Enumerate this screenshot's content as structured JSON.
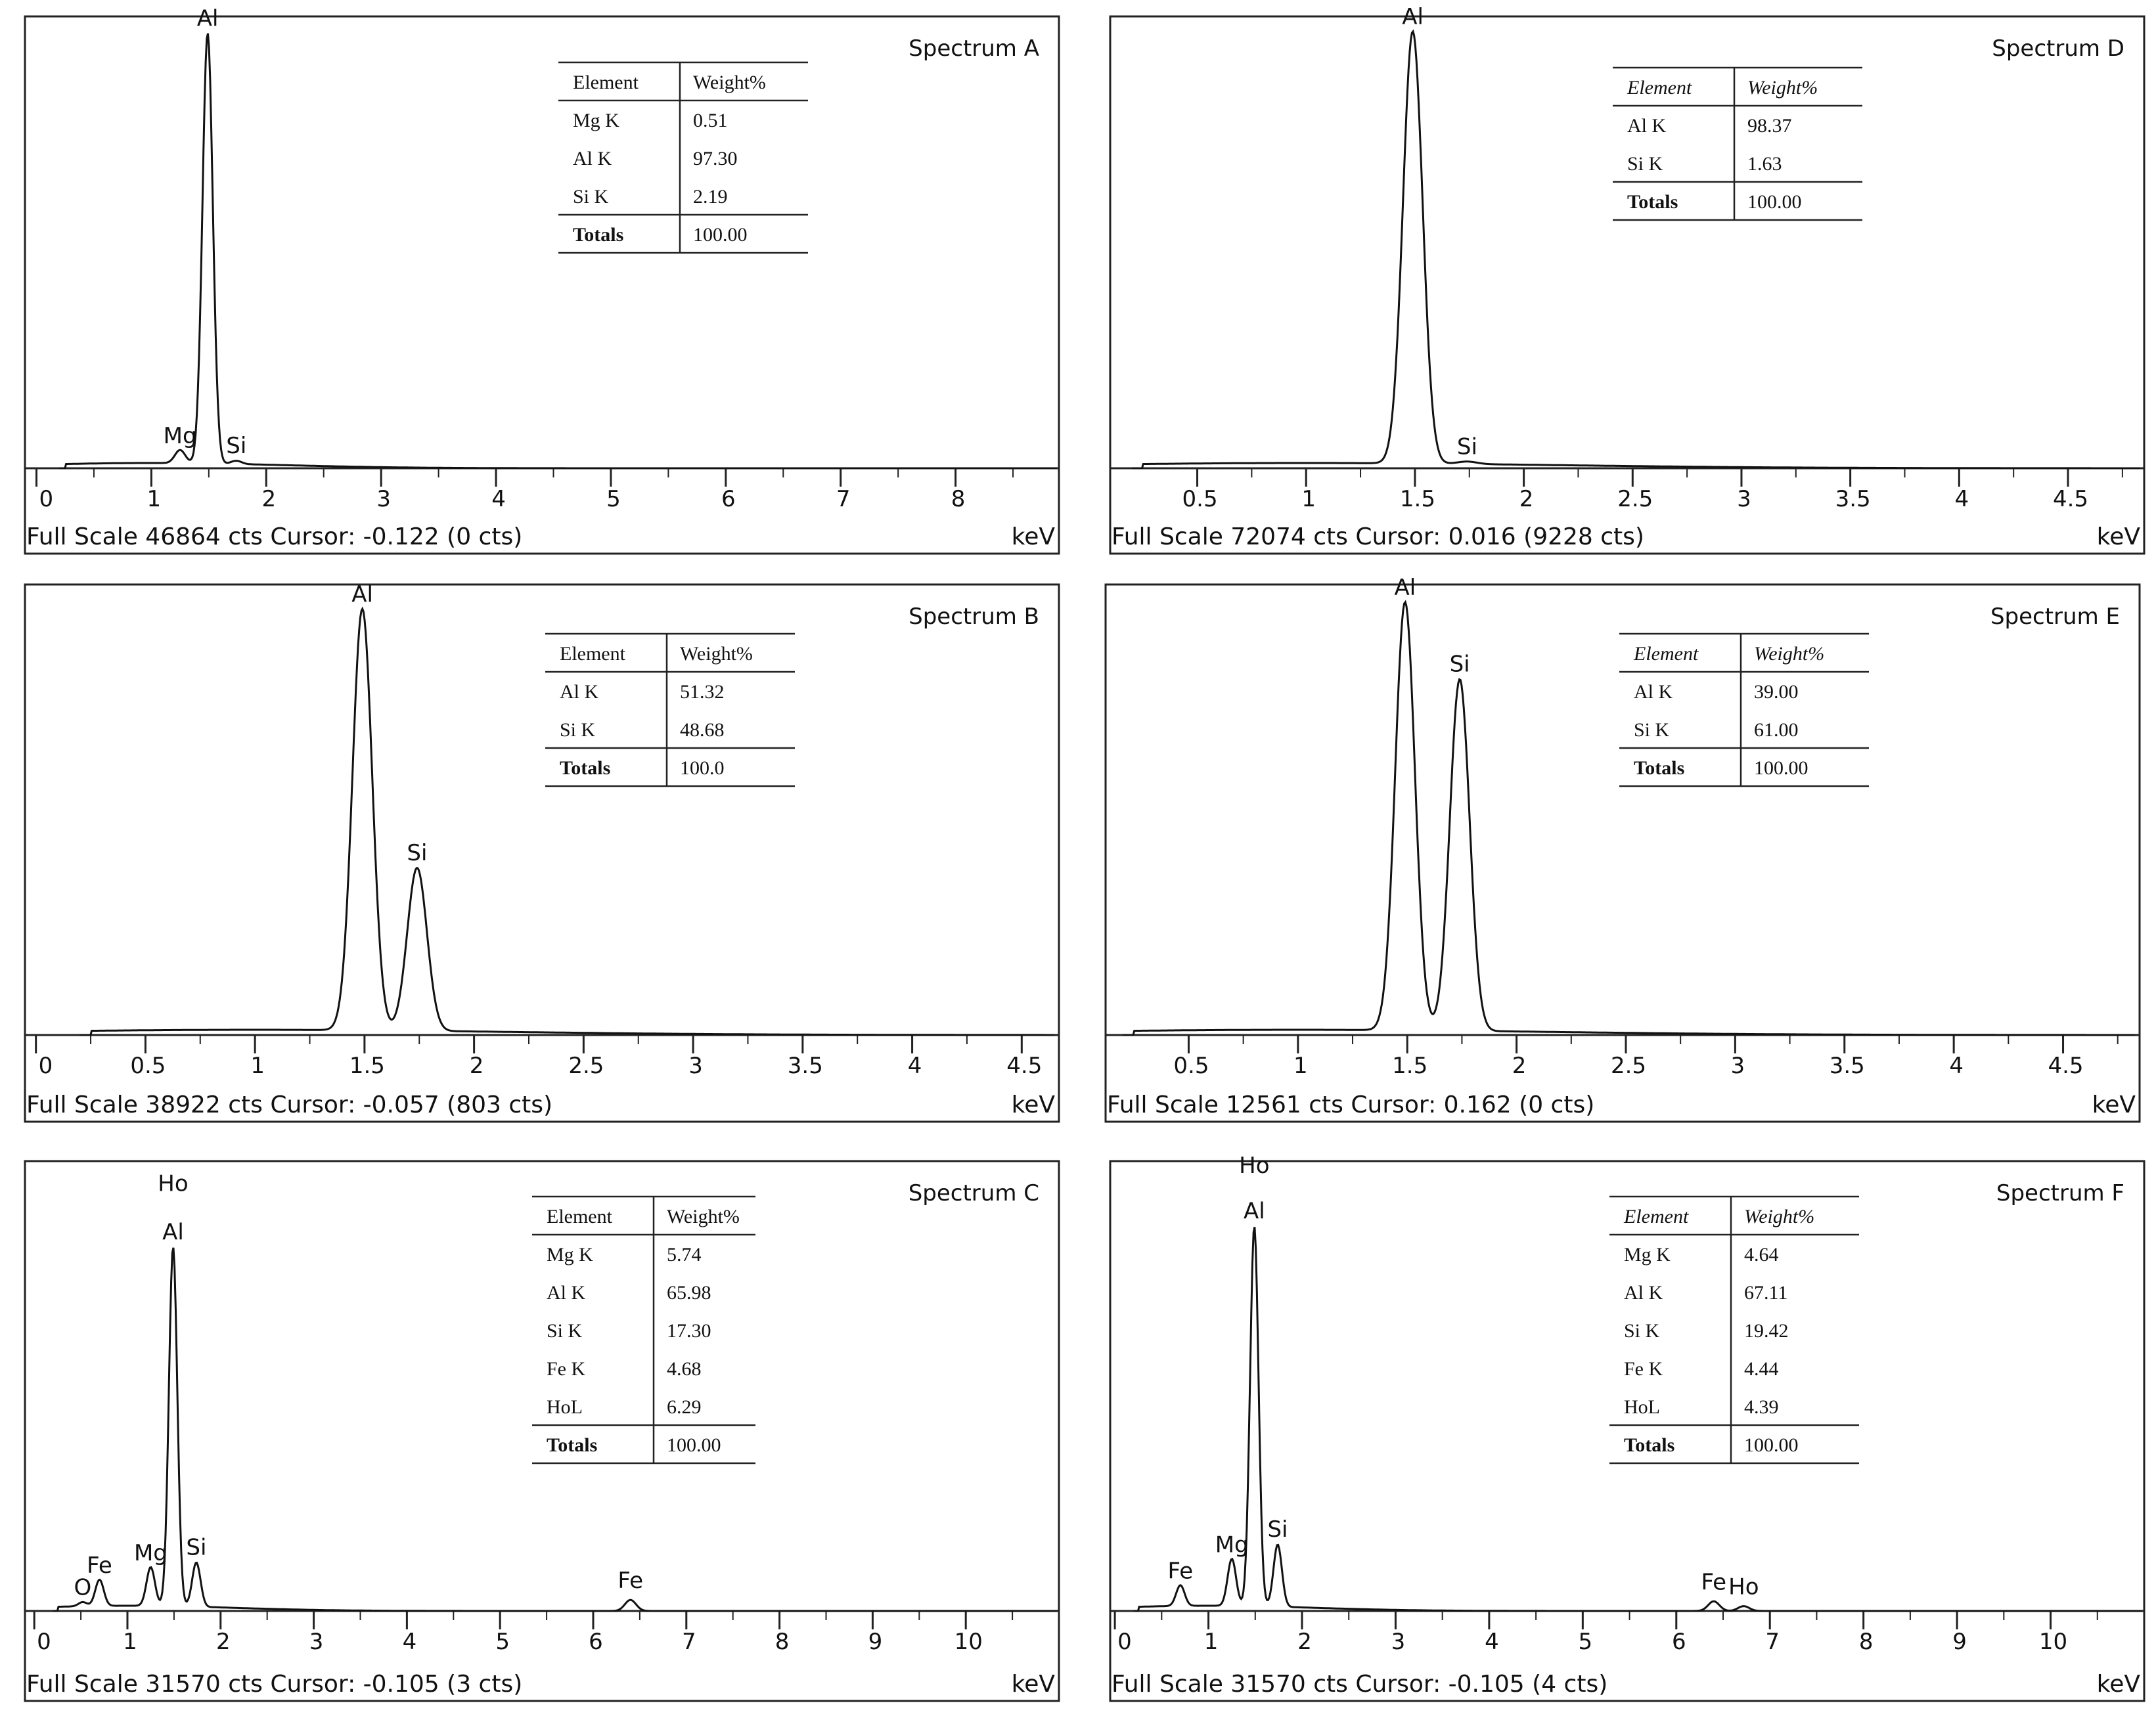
{
  "chart_data": [
    {
      "type": "line",
      "title": "Spectrum A",
      "xlabel": "keV",
      "xlim": [
        -0.1,
        8.9
      ],
      "ylim": [
        0,
        46864
      ],
      "x_ticks": [
        0,
        1,
        2,
        3,
        4,
        5,
        6,
        7,
        8
      ],
      "footer": "Full Scale 46864 cts Cursor: -0.122  (0 cts)",
      "peaks": [
        {
          "label": "Al",
          "x": 1.49,
          "y": 46000
        },
        {
          "label": "Mg",
          "x": 1.25,
          "y": 1400
        },
        {
          "label": "Si",
          "x": 1.74,
          "y": 350
        }
      ],
      "table": {
        "headers": [
          "Element",
          "Weight%"
        ],
        "header_italic": false,
        "rows": [
          [
            "Mg K",
            "0.51"
          ],
          [
            "Al K",
            "97.30"
          ],
          [
            "Si K",
            "2.19"
          ]
        ],
        "total": [
          "Totals",
          "100.00"
        ]
      }
    },
    {
      "type": "line",
      "title": "Spectrum D",
      "xlabel": "keV",
      "xlim": [
        0.1,
        4.85
      ],
      "ylim": [
        0,
        72074
      ],
      "x_ticks": [
        0.5,
        1,
        1.5,
        2,
        2.5,
        3,
        3.5,
        4,
        4.5
      ],
      "footer": "Full Scale 72074 cts Cursor: 0.016  (9228 cts)",
      "peaks": [
        {
          "label": "Al",
          "x": 1.49,
          "y": 71000
        },
        {
          "label": "Si",
          "x": 1.74,
          "y": 400
        }
      ],
      "table": {
        "headers": [
          "Element",
          "Weight%"
        ],
        "header_italic": true,
        "rows": [
          [
            "Al K",
            "98.37"
          ],
          [
            "Si K",
            "1.63"
          ]
        ],
        "total": [
          "Totals",
          "100.00"
        ]
      }
    },
    {
      "type": "line",
      "title": "Spectrum B",
      "xlabel": "keV",
      "xlim": [
        -0.05,
        4.67
      ],
      "ylim": [
        0,
        38922
      ],
      "x_ticks": [
        0,
        0.5,
        1,
        1.5,
        2,
        2.5,
        3,
        3.5,
        4,
        4.5
      ],
      "footer": "Full Scale 38922 cts Cursor: -0.057  (803 cts)",
      "peaks": [
        {
          "label": "Al",
          "x": 1.49,
          "y": 37500
        },
        {
          "label": "Si",
          "x": 1.74,
          "y": 14500
        }
      ],
      "table": {
        "headers": [
          "Element",
          "Weight%"
        ],
        "header_italic": false,
        "rows": [
          [
            "Al K",
            "51.32"
          ],
          [
            "Si K",
            "48.68"
          ]
        ],
        "total": [
          "Totals",
          "100.0"
        ]
      }
    },
    {
      "type": "line",
      "title": "Spectrum E",
      "xlabel": "keV",
      "xlim": [
        0.12,
        4.85
      ],
      "ylim": [
        0,
        12561
      ],
      "x_ticks": [
        0.5,
        1,
        1.5,
        2,
        2.5,
        3,
        3.5,
        4,
        4.5
      ],
      "footer": "Full Scale 12561 cts Cursor: 0.162  (0 cts)",
      "peaks": [
        {
          "label": "Al",
          "x": 1.49,
          "y": 12300
        },
        {
          "label": "Si",
          "x": 1.74,
          "y": 10100
        }
      ],
      "table": {
        "headers": [
          "Element",
          "Weight%"
        ],
        "header_italic": true,
        "rows": [
          [
            "Al K",
            "39.00"
          ],
          [
            "Si K",
            "61.00"
          ]
        ],
        "total": [
          "Totals",
          "100.00"
        ]
      }
    },
    {
      "type": "line",
      "title": "Spectrum C",
      "xlabel": "keV",
      "xlim": [
        -0.1,
        11.0
      ],
      "ylim": [
        0,
        31570
      ],
      "x_ticks": [
        0,
        1,
        2,
        3,
        4,
        5,
        6,
        7,
        8,
        9,
        10
      ],
      "footer": "Full Scale 31570 cts Cursor: -0.105  (3 cts)",
      "peaks": [
        {
          "label": "Ho",
          "x": 1.49,
          "y": 29500
        },
        {
          "label": "Al",
          "x": 1.49,
          "y": 26000
        },
        {
          "label": "O",
          "x": 0.52,
          "y": 300
        },
        {
          "label": "Fe",
          "x": 0.7,
          "y": 1900
        },
        {
          "label": "Mg",
          "x": 1.25,
          "y": 2800
        },
        {
          "label": "Si",
          "x": 1.74,
          "y": 3200
        },
        {
          "label": "Fe",
          "x": 6.4,
          "y": 800
        }
      ],
      "table": {
        "headers": [
          "Element",
          "Weight%"
        ],
        "header_italic": false,
        "rows": [
          [
            "Mg K",
            "5.74"
          ],
          [
            "Al K",
            "65.98"
          ],
          [
            "Si K",
            "17.30"
          ],
          [
            "Fe K",
            "4.68"
          ],
          [
            "HoL",
            "6.29"
          ]
        ],
        "total": [
          "Totals",
          "100.00"
        ]
      }
    },
    {
      "type": "line",
      "title": "Spectrum F",
      "xlabel": "keV",
      "xlim": [
        -0.05,
        11.0
      ],
      "ylim": [
        0,
        31570
      ],
      "x_ticks": [
        0,
        1,
        2,
        3,
        4,
        5,
        6,
        7,
        8,
        9,
        10
      ],
      "footer": "Full Scale 31570 cts Cursor: -0.105  (4 cts)",
      "peaks": [
        {
          "label": "Ho",
          "x": 1.49,
          "y": 30800
        },
        {
          "label": "Al",
          "x": 1.49,
          "y": 27500
        },
        {
          "label": "Fe",
          "x": 0.7,
          "y": 1500
        },
        {
          "label": "Mg",
          "x": 1.25,
          "y": 3400
        },
        {
          "label": "Si",
          "x": 1.74,
          "y": 4500
        },
        {
          "label": "Fe",
          "x": 6.4,
          "y": 700
        },
        {
          "label": "Ho",
          "x": 6.72,
          "y": 350
        }
      ],
      "table": {
        "headers": [
          "Element",
          "Weight%"
        ],
        "header_italic": true,
        "rows": [
          [
            "Mg K",
            "4.64"
          ],
          [
            "Al K",
            "67.11"
          ],
          [
            "Si K",
            "19.42"
          ],
          [
            "Fe K",
            "4.44"
          ],
          [
            "HoL",
            "4.39"
          ]
        ],
        "total": [
          "Totals",
          "100.00"
        ]
      }
    }
  ]
}
